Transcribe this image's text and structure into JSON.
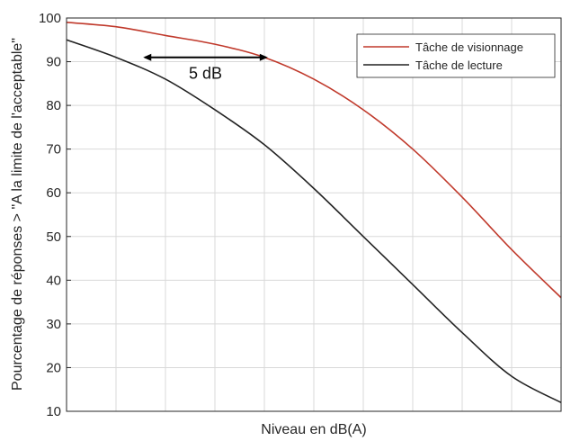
{
  "chart_data": {
    "type": "line",
    "xlabel": "Niveau en dB(A)",
    "ylabel": "Pourcentage de réponses > \"A la limite de l'acceptable\"",
    "ylim": [
      10,
      100
    ],
    "xlim": [
      0,
      100
    ],
    "x_tick_labels_shown": false,
    "yticks": [
      10,
      20,
      30,
      40,
      50,
      60,
      70,
      80,
      90,
      100
    ],
    "ytick_labels": [
      "10",
      "20",
      "30",
      "40",
      "50",
      "60",
      "70",
      "80",
      "90",
      "100"
    ],
    "grid": true,
    "legend_position": "top-right",
    "colors": {
      "visionnage": "#c0392b",
      "lecture": "#222222",
      "grid": "#d9d9d9"
    },
    "series": [
      {
        "name": "Tâche de visionnage",
        "x": [
          0,
          10,
          20,
          30,
          40,
          50,
          60,
          70,
          80,
          90,
          100
        ],
        "y": [
          99,
          98,
          96,
          94,
          91,
          86,
          79,
          70,
          59,
          47,
          36
        ]
      },
      {
        "name": "Tâche de lecture",
        "x": [
          0,
          10,
          20,
          30,
          40,
          50,
          60,
          70,
          80,
          90,
          100
        ],
        "y": [
          95,
          91,
          86,
          79,
          71,
          61,
          50,
          39,
          28,
          18,
          12
        ]
      }
    ],
    "annotation": {
      "text": "5 dB",
      "y": 91,
      "x_start": 15.5,
      "x_end": 40.7
    }
  }
}
